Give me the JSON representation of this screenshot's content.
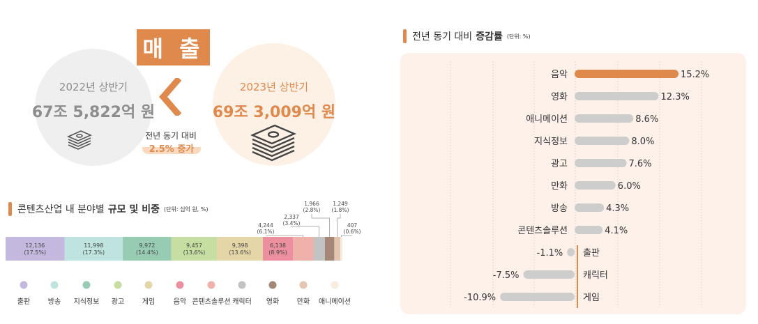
{
  "revenue": {
    "badge": "매 출",
    "prev": {
      "label": "2022년 상반기",
      "amount": "67조 5,822억 원"
    },
    "curr": {
      "label": "2023년 상반기",
      "amount": "69조 3,009억 원"
    },
    "yoy_label": "전년 동기 대비",
    "yoy_value": "2.5% 증가"
  },
  "share_section": {
    "title_normal": "콘텐츠산업 내 분야별",
    "title_bold": "규모 및 비중",
    "unit": "(단위: 십억 원, %)"
  },
  "growth_section": {
    "title_normal": "전년 동기 대비",
    "title_bold": "증감률",
    "unit": "(단위: %)"
  },
  "chart_data": [
    {
      "type": "bar",
      "stacked": true,
      "orientation": "horizontal",
      "categories": [
        "출판",
        "방송",
        "지식정보",
        "광고",
        "게임",
        "음악",
        "콘텐츠솔루션",
        "캐릭터",
        "영화",
        "만화",
        "애니메이션"
      ],
      "value_labels": [
        "12,136",
        "11,998",
        "9,972",
        "9,457",
        "9,398",
        "6,138",
        "4,244",
        "2,337",
        "1,966",
        "1,249",
        "407"
      ],
      "pct_labels": [
        "(17.5%)",
        "(17.3%)",
        "(14.4%)",
        "(13.6%)",
        "(13.6%)",
        "(8.9%)",
        "(6.1%)",
        "(3.4%)",
        "(2.8%)",
        "(1.8%)",
        "(0.6%)"
      ],
      "values": [
        17.5,
        17.3,
        14.4,
        13.6,
        13.6,
        8.9,
        6.1,
        3.4,
        2.8,
        1.8,
        0.6
      ],
      "colors": [
        "#c5b8de",
        "#bfe4df",
        "#97ccb2",
        "#c6dea2",
        "#e4d6a7",
        "#ec909f",
        "#efb1a9",
        "#c3c3c3",
        "#a48777",
        "#e4c5b2",
        "#f6eddf"
      ],
      "legend_position": "bottom"
    },
    {
      "type": "bar",
      "orientation": "horizontal",
      "categories": [
        "음악",
        "영화",
        "애니메이션",
        "지식정보",
        "광고",
        "만화",
        "방송",
        "콘텐츠솔루션",
        "출판",
        "캐릭터",
        "게임"
      ],
      "values": [
        15.2,
        12.3,
        8.6,
        8.0,
        7.6,
        6.0,
        4.3,
        4.1,
        -1.1,
        -7.5,
        -10.9
      ],
      "labels": [
        "15.2%",
        "12.3%",
        "8.6%",
        "8.0%",
        "7.6%",
        "6.0%",
        "4.3%",
        "4.1%",
        "-1.1%",
        "-7.5%",
        "-10.9%"
      ],
      "highlight_color": "#e0894d",
      "bar_color": "#cdcdcd",
      "xlim": [
        -11.5,
        15.2
      ],
      "grid": true
    }
  ]
}
